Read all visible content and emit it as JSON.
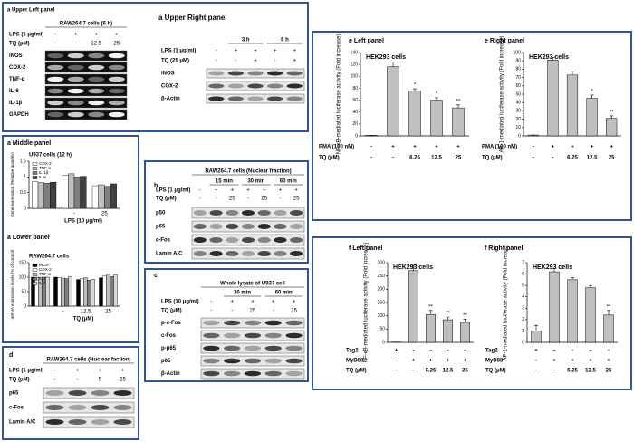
{
  "blots": {
    "upper_left": {
      "title": "a Upper Left panel",
      "group": "RAW264.7 cells (6 h)",
      "conditions": [
        {
          "label": "LPS (1 μg/ml)",
          "cells": [
            "-",
            "+",
            "+",
            "+"
          ]
        },
        {
          "label": "TQ (μM)",
          "cells": [
            "-",
            "-",
            "12.5",
            "25"
          ]
        }
      ],
      "bands": [
        "iNOS",
        "COX-2",
        "TNF-α",
        "IL-6",
        "IL-1β",
        "GAPDH"
      ]
    },
    "upper_right": {
      "title": "a Upper Right panel",
      "times": [
        "3 h",
        "6 h"
      ],
      "conditions": [
        {
          "label": "LPS (1 μg/ml)",
          "cells": [
            "-",
            "+",
            "+",
            "+",
            "+"
          ]
        },
        {
          "label": "TQ (25 μM)",
          "cells": [
            "-",
            "-",
            "+",
            "-",
            "+"
          ]
        }
      ],
      "bands": [
        "iNOS",
        "COX-2",
        "β-Actin"
      ]
    },
    "b": {
      "title": "b",
      "group": "RAW264.7 cells (Nuclear fraction)",
      "times": [
        "15 min",
        "30 min",
        "60 min"
      ],
      "conditions": [
        {
          "label": "LPS (1 μg/ml)",
          "cells": [
            "-",
            "+",
            "+",
            "+",
            "+",
            "+",
            "+"
          ]
        },
        {
          "label": "TQ (μM)",
          "cells": [
            "-",
            "-",
            "25",
            "-",
            "25",
            "-",
            "25"
          ]
        }
      ],
      "bands": [
        "p50",
        "p65",
        "c-Fos",
        "Lamin A/C"
      ]
    },
    "c": {
      "title": "c",
      "group": "Whole lysate of U937 cell",
      "times": [
        "30 min",
        "60 min"
      ],
      "conditions": [
        {
          "label": "LPS (10 μg/ml)",
          "cells": [
            "-",
            "+",
            "+",
            "+",
            "+"
          ]
        },
        {
          "label": "TQ (μM)",
          "cells": [
            "-",
            "-",
            "25",
            "-",
            "25"
          ]
        }
      ],
      "bands": [
        "p-c-Fos",
        "c-Fos",
        "p-p65",
        "p65",
        "β-Actin"
      ]
    },
    "d": {
      "title": "d",
      "group": "RAW264.7 cells (Nuclear faction)",
      "conditions": [
        {
          "label": "LPS (1 μg/ml)",
          "cells": [
            "-",
            "+",
            "+",
            "+"
          ]
        },
        {
          "label": "TQ (μM)",
          "cells": [
            "-",
            "-",
            "5",
            "25"
          ]
        }
      ],
      "bands": [
        "p65",
        "c-Fos",
        "Lamin A/C"
      ]
    }
  },
  "chart_data": [
    {
      "type": "bar",
      "panel_title": "a Middle panel",
      "title": "U937 cells (12 h)",
      "y_label": "Gene expression (Relative quantity)",
      "x_label": "LPS (10 μg/ml)",
      "categories": [
        null,
        "-",
        "25"
      ],
      "ylim": [
        0,
        1.5
      ],
      "yticks": [
        0,
        0.5,
        1,
        1.5
      ],
      "series": [
        {
          "name": "COX-2",
          "color": "#ffffff",
          "values": [
            0.85,
            1.05,
            0.72
          ]
        },
        {
          "name": "TNF-α",
          "color": "#bfbfbf",
          "values": [
            0.82,
            1.1,
            0.75
          ]
        },
        {
          "name": "IL-1β",
          "color": "#7f7f7f",
          "values": [
            0.8,
            1.0,
            0.7
          ]
        },
        {
          "name": "IL-6",
          "color": "#404040",
          "values": [
            0.83,
            1.02,
            0.78
          ]
        }
      ]
    },
    {
      "type": "bar",
      "panel_title": "a Lower panel",
      "title": "RAW264.7 cells",
      "y_label": "mRNA expression levels (% of control)",
      "x_label": "TQ (μM)",
      "categories": [
        null,
        "-",
        "12.5",
        "25"
      ],
      "ylim": [
        0,
        150
      ],
      "yticks": [
        0,
        50,
        100,
        150
      ],
      "series": [
        {
          "name": "iNOS",
          "color": "#000000",
          "values": [
            100,
            100,
            92,
            98
          ]
        },
        {
          "name": "COX-2",
          "color": "#ffffff",
          "values": [
            100,
            98,
            95,
            105
          ]
        },
        {
          "name": "TNF-α",
          "color": "#bfbfbf",
          "values": [
            100,
            97,
            98,
            110
          ]
        },
        {
          "name": "IL-1β",
          "color": "#7f7f7f",
          "values": [
            100,
            95,
            90,
            102
          ]
        },
        {
          "name": "IL-6",
          "color": "#d9d9d9",
          "values": [
            100,
            102,
            93,
            108
          ]
        }
      ]
    },
    {
      "type": "bar",
      "panel_title": "e Left panel",
      "title": "HEK293 cells",
      "y_label": "NF-κB-mediated luciferase activity (Fold increase)",
      "values": [
        1,
        116,
        75,
        60,
        47
      ],
      "errors": [
        0,
        8,
        4,
        4,
        5
      ],
      "annotations": [
        null,
        null,
        "*",
        "*",
        "**"
      ],
      "color": "#bfbfbf",
      "ylim": [
        0,
        140
      ],
      "yticks": [
        0,
        20,
        40,
        60,
        80,
        100,
        120,
        140
      ],
      "conditions": [
        {
          "label": "PMA (100 nM)",
          "cells": [
            "-",
            "+",
            "+",
            "+",
            "+"
          ]
        },
        {
          "label": "TQ (μM)",
          "cells": [
            "-",
            "-",
            "6.25",
            "12.5",
            "25"
          ]
        }
      ]
    },
    {
      "type": "bar",
      "panel_title": "e Right panel",
      "title": "HEK293 cells",
      "y_label": "AP-1-mediated luciferase activity (Fold increase)",
      "values": [
        1,
        91,
        73,
        45,
        21
      ],
      "errors": [
        0,
        3,
        4,
        4,
        3
      ],
      "annotations": [
        null,
        null,
        null,
        "*",
        "**"
      ],
      "color": "#bfbfbf",
      "ylim": [
        0,
        100
      ],
      "yticks": [
        0,
        10,
        20,
        30,
        40,
        50,
        60,
        70,
        80,
        90,
        100
      ],
      "conditions": [
        {
          "label": "PMA (100 nM)",
          "cells": [
            "-",
            "+",
            "+",
            "+",
            "+"
          ]
        },
        {
          "label": "TQ (μM)",
          "cells": [
            "-",
            "-",
            "6.25",
            "12.5",
            "25"
          ]
        }
      ]
    },
    {
      "type": "bar",
      "panel_title": "f Left panel",
      "title": "HEK293 cells",
      "y_label": "NF-κB-mediated luciferase activity (Fold increase)",
      "values": [
        1,
        270,
        105,
        85,
        75
      ],
      "errors": [
        0,
        20,
        15,
        10,
        12
      ],
      "annotations": [
        null,
        null,
        "**",
        "**",
        "**"
      ],
      "color": "#bfbfbf",
      "ylim": [
        0,
        300
      ],
      "yticks": [
        0,
        50,
        100,
        150,
        200,
        250,
        300
      ],
      "conditions": [
        {
          "label": "Tag2",
          "cells": [
            "+",
            "-",
            "-",
            "-",
            "-"
          ]
        },
        {
          "label": "MyD88",
          "cells": [
            "-",
            "+",
            "+",
            "+",
            "+"
          ]
        },
        {
          "label": "TQ (μM)",
          "cells": [
            "-",
            "-",
            "6.25",
            "12.5",
            "25"
          ]
        }
      ]
    },
    {
      "type": "bar",
      "panel_title": "f Right panel",
      "title": "HEK293 cells",
      "y_label": "AP-1-mediated luciferase activity (Fold increase)",
      "values": [
        1,
        6.2,
        5.5,
        4.8,
        2.4
      ],
      "errors": [
        0.5,
        0.3,
        0.2,
        0.2,
        0.4
      ],
      "annotations": [
        null,
        null,
        null,
        null,
        "**"
      ],
      "color": "#bfbfbf",
      "ylim": [
        0,
        7
      ],
      "yticks": [
        0,
        1,
        2,
        3,
        4,
        5,
        6,
        7
      ],
      "conditions": [
        {
          "label": "Tag2",
          "cells": [
            "+",
            "-",
            "-",
            "-",
            "-"
          ]
        },
        {
          "label": "MyD88",
          "cells": [
            "-",
            "+",
            "+",
            "+",
            "+"
          ]
        },
        {
          "label": "TQ (μM)",
          "cells": [
            "-",
            "-",
            "6.25",
            "12.5",
            "25"
          ]
        }
      ]
    }
  ]
}
